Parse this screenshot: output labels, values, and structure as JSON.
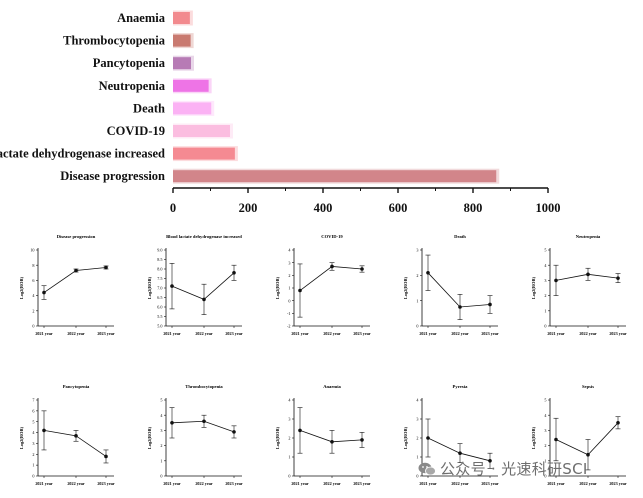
{
  "chart_data": [
    {
      "type": "bar",
      "orientation": "horizontal",
      "categories": [
        "Anaemia",
        "Thrombocytopenia",
        "Pancytopenia",
        "Neutropenia",
        "Death",
        "COVID-19",
        "Blood lactate dehydrogenase increased",
        "Disease progression"
      ],
      "values": [
        45,
        47,
        48,
        95,
        102,
        152,
        165,
        862
      ],
      "colors": [
        "#f28a8e",
        "#c97a70",
        "#b77bb5",
        "#ee74e6",
        "#fbb2f4",
        "#fbbde0",
        "#f58a92",
        "#d2858a"
      ],
      "xlim": [
        0,
        1000
      ],
      "xticks": [
        "0",
        "200",
        "400",
        "600",
        "800",
        "1000"
      ],
      "grid": false
    },
    {
      "type": "line",
      "title": "Disease progression",
      "ylabel": "Log2(ROR)",
      "categories": [
        "2021 year",
        "2022 year",
        "2023 year"
      ],
      "values": [
        4.4,
        7.3,
        7.7
      ],
      "errors": [
        0.9,
        0.2,
        0.2
      ],
      "ylim": [
        0,
        10
      ],
      "yticks": [
        "0",
        "2",
        "4",
        "6",
        "8",
        "10"
      ]
    },
    {
      "type": "line",
      "title": "Blood lactate dehydrogenase increased",
      "ylabel": "Log2(ROR)",
      "categories": [
        "2021 year",
        "2022 year",
        "2023 year"
      ],
      "values": [
        7.1,
        6.4,
        7.8
      ],
      "errors": [
        1.2,
        0.8,
        0.4
      ],
      "ylim": [
        5,
        9
      ],
      "yticks": [
        "5.0",
        "5.5",
        "6.0",
        "6.5",
        "7.0",
        "7.5",
        "8.0",
        "8.5",
        "9.0"
      ]
    },
    {
      "type": "line",
      "title": "COVID-19",
      "ylabel": "Log2(ROR)",
      "categories": [
        "2021 year",
        "2022 year",
        "2023 year"
      ],
      "values": [
        0.8,
        2.7,
        2.5
      ],
      "errors": [
        2.1,
        0.3,
        0.25
      ],
      "ylim": [
        -2,
        4
      ],
      "yticks": [
        "-2",
        "-1",
        "0",
        "1",
        "2",
        "3",
        "4"
      ]
    },
    {
      "type": "line",
      "title": "Death",
      "ylabel": "Log2(ROR)",
      "categories": [
        "2021 year",
        "2022 year",
        "2023 year"
      ],
      "values": [
        2.1,
        0.75,
        0.85
      ],
      "errors": [
        0.7,
        0.5,
        0.35
      ],
      "ylim": [
        0,
        3
      ],
      "yticks": [
        "0",
        "1",
        "2",
        "3"
      ]
    },
    {
      "type": "line",
      "title": "Neutropenia",
      "ylabel": "Log2(ROR)",
      "categories": [
        "2021 year",
        "2022 year",
        "2023 year"
      ],
      "values": [
        3.0,
        3.4,
        3.15
      ],
      "errors": [
        1.0,
        0.4,
        0.3
      ],
      "ylim": [
        0,
        5
      ],
      "yticks": [
        "0",
        "1",
        "2",
        "3",
        "4",
        "5"
      ]
    },
    {
      "type": "line",
      "title": "Pancytopenia",
      "ylabel": "Log2(ROR)",
      "categories": [
        "2021 year",
        "2022 year",
        "2023 year"
      ],
      "values": [
        4.2,
        3.7,
        1.8
      ],
      "errors": [
        1.8,
        0.5,
        0.6
      ],
      "ylim": [
        0,
        7
      ],
      "yticks": [
        "0",
        "1",
        "2",
        "3",
        "4",
        "5",
        "6",
        "7"
      ]
    },
    {
      "type": "line",
      "title": "Thrombocytopenia",
      "ylabel": "Log2(ROR)",
      "categories": [
        "2021 year",
        "2022 year",
        "2023 year"
      ],
      "values": [
        3.5,
        3.6,
        2.9
      ],
      "errors": [
        1.0,
        0.4,
        0.4
      ],
      "ylim": [
        0,
        5
      ],
      "yticks": [
        "0",
        "1",
        "2",
        "3",
        "4",
        "5"
      ]
    },
    {
      "type": "line",
      "title": "Anaemia",
      "ylabel": "Log2(ROR)",
      "categories": [
        "2021 year",
        "2022 year",
        "2023 year"
      ],
      "values": [
        2.4,
        1.8,
        1.9
      ],
      "errors": [
        1.2,
        0.6,
        0.4
      ],
      "ylim": [
        0,
        4
      ],
      "yticks": [
        "0",
        "1",
        "2",
        "3",
        "4"
      ]
    },
    {
      "type": "line",
      "title": "Pyrexia",
      "ylabel": "Log2(ROR)",
      "categories": [
        "2021 year",
        "2022 year",
        "2023 year"
      ],
      "values": [
        2.0,
        1.2,
        0.8
      ],
      "errors": [
        1.0,
        0.5,
        0.4
      ],
      "ylim": [
        0,
        4
      ],
      "yticks": [
        "0",
        "1",
        "2",
        "3",
        "4"
      ]
    },
    {
      "type": "line",
      "title": "Sepsis",
      "ylabel": "Log2(ROR)",
      "categories": [
        "2021 year",
        "2022 year",
        "2023 year"
      ],
      "values": [
        2.4,
        1.4,
        3.5
      ],
      "errors": [
        1.4,
        1.0,
        0.4
      ],
      "ylim": [
        0,
        5
      ],
      "yticks": [
        "0",
        "1",
        "2",
        "3",
        "4",
        "5"
      ]
    }
  ],
  "watermark": "公众号 · 光速科研SCI",
  "watermark_icon": "wechat-icon"
}
